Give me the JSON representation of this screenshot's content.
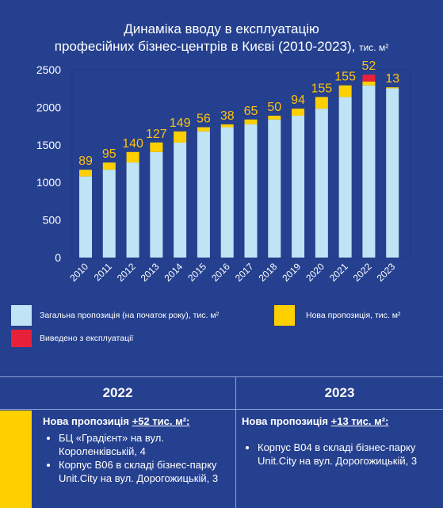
{
  "title": {
    "line1": "Динаміка вводу в експлуатацію",
    "line2": "професійних бізнес-центрів в Києві (2010-2023),",
    "unit": "тис. м²"
  },
  "chart_data": {
    "type": "bar",
    "stacked": true,
    "categories": [
      "2010",
      "2011",
      "2012",
      "2013",
      "2014",
      "2015",
      "2016",
      "2017",
      "2018",
      "2019",
      "2020",
      "2021",
      "2022",
      "2023"
    ],
    "series": [
      {
        "name": "Загальна пропозиція (на початок року), тис. м²",
        "color": "#bfe4f6",
        "values": [
          1080,
          1170,
          1265,
          1405,
          1530,
          1679,
          1735,
          1773,
          1838,
          1888,
          1982,
          2137,
          2292,
          2253
        ]
      },
      {
        "name": "Нова пропозиція, тис. м²",
        "color": "#ffd000",
        "values": [
          89,
          95,
          140,
          127,
          149,
          56,
          38,
          65,
          50,
          94,
          155,
          155,
          52,
          13
        ]
      },
      {
        "name": "Виведено з експлуатації",
        "color": "#e8213a",
        "values": [
          0,
          0,
          0,
          0,
          0,
          0,
          0,
          0,
          0,
          0,
          0,
          0,
          91,
          0
        ]
      }
    ],
    "labels": [
      "89",
      "95",
      "140",
      "127",
      "149",
      "56",
      "38",
      "65",
      "50",
      "94",
      "155",
      "155",
      "52",
      "13"
    ],
    "yticks": [
      "0",
      "500",
      "1000",
      "1500",
      "2000",
      "2500"
    ],
    "ylim": [
      0,
      2500
    ],
    "grid": false,
    "colors": {
      "label": "#ffc20e",
      "axis": "#ffffff",
      "frame": "#1d3a86"
    }
  },
  "legend": {
    "total": "Загальна пропозиція (на початок року), тис. м²",
    "new": "Нова пропозиція, тис. м²",
    "removed": "Виведено з експлуатації"
  },
  "table": {
    "col1": {
      "year": "2022",
      "head": "Нова пропозиція",
      "amount": "+52 тис. м²:",
      "items": [
        "БЦ «Градієнт» на вул. Короленківській, 4",
        "Корпус B06 в складі бізнес-парку Unit.City на вул. Дорогожицькій, 3"
      ]
    },
    "col2": {
      "year": "2023",
      "head": "Нова пропозиція",
      "amount": "+13 тис. м²:",
      "items": [
        "Корпус B04 в складі бізнес-парку Unit.City на вул. Дорогожицькій, 3"
      ]
    }
  }
}
